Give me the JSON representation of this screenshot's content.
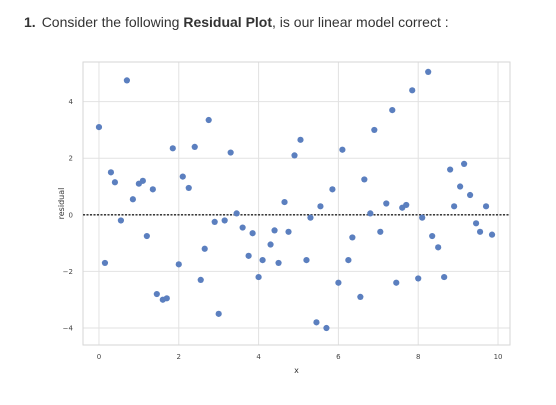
{
  "question": {
    "number": "1.",
    "text_before": "Consider the following ",
    "bold": "Residual Plot",
    "text_after": ", is our linear model correct :"
  },
  "chart_data": {
    "type": "scatter",
    "xlabel": "x",
    "ylabel": "residual",
    "xlim": [
      -0.4,
      10.3
    ],
    "ylim": [
      -4.6,
      5.4
    ],
    "xticks": [
      0,
      2,
      4,
      6,
      8,
      10
    ],
    "yticks": [
      -4,
      -2,
      0,
      2,
      4
    ],
    "grid": true,
    "reference_line": 0,
    "point_color": "#5b7fbf",
    "points": [
      [
        0.0,
        3.1
      ],
      [
        0.15,
        -1.7
      ],
      [
        0.3,
        1.5
      ],
      [
        0.4,
        1.15
      ],
      [
        0.55,
        -0.2
      ],
      [
        0.7,
        4.75
      ],
      [
        0.85,
        0.55
      ],
      [
        1.0,
        1.1
      ],
      [
        1.1,
        1.2
      ],
      [
        1.2,
        -0.75
      ],
      [
        1.35,
        0.9
      ],
      [
        1.45,
        -2.8
      ],
      [
        1.6,
        -3.0
      ],
      [
        1.7,
        -2.95
      ],
      [
        1.85,
        2.35
      ],
      [
        2.0,
        -1.75
      ],
      [
        2.1,
        1.35
      ],
      [
        2.25,
        0.95
      ],
      [
        2.4,
        2.4
      ],
      [
        2.55,
        -2.3
      ],
      [
        2.65,
        -1.2
      ],
      [
        2.75,
        3.35
      ],
      [
        2.9,
        -0.25
      ],
      [
        3.0,
        -3.5
      ],
      [
        3.15,
        -0.2
      ],
      [
        3.3,
        2.2
      ],
      [
        3.45,
        0.05
      ],
      [
        3.6,
        -0.45
      ],
      [
        3.75,
        -1.45
      ],
      [
        3.85,
        -0.65
      ],
      [
        4.0,
        -2.2
      ],
      [
        4.1,
        -1.6
      ],
      [
        4.3,
        -1.05
      ],
      [
        4.4,
        -0.55
      ],
      [
        4.5,
        -1.7
      ],
      [
        4.65,
        0.45
      ],
      [
        4.75,
        -0.6
      ],
      [
        4.9,
        2.1
      ],
      [
        5.05,
        2.65
      ],
      [
        5.2,
        -1.6
      ],
      [
        5.3,
        -0.1
      ],
      [
        5.45,
        -3.8
      ],
      [
        5.55,
        0.3
      ],
      [
        5.7,
        -4.0
      ],
      [
        5.85,
        0.9
      ],
      [
        6.0,
        -2.4
      ],
      [
        6.1,
        2.3
      ],
      [
        6.25,
        -1.6
      ],
      [
        6.35,
        -0.8
      ],
      [
        6.55,
        -2.9
      ],
      [
        6.65,
        1.25
      ],
      [
        6.8,
        0.05
      ],
      [
        6.9,
        3.0
      ],
      [
        7.05,
        -0.6
      ],
      [
        7.2,
        0.4
      ],
      [
        7.35,
        3.7
      ],
      [
        7.45,
        -2.4
      ],
      [
        7.6,
        0.25
      ],
      [
        7.7,
        0.35
      ],
      [
        7.85,
        4.4
      ],
      [
        8.0,
        -2.25
      ],
      [
        8.1,
        -0.1
      ],
      [
        8.25,
        5.05
      ],
      [
        8.35,
        -0.75
      ],
      [
        8.5,
        -1.15
      ],
      [
        8.65,
        -2.2
      ],
      [
        8.8,
        1.6
      ],
      [
        8.9,
        0.3
      ],
      [
        9.05,
        1.0
      ],
      [
        9.15,
        1.8
      ],
      [
        9.3,
        0.7
      ],
      [
        9.45,
        -0.3
      ],
      [
        9.55,
        -0.6
      ],
      [
        9.7,
        0.3
      ],
      [
        9.85,
        -0.7
      ]
    ]
  }
}
